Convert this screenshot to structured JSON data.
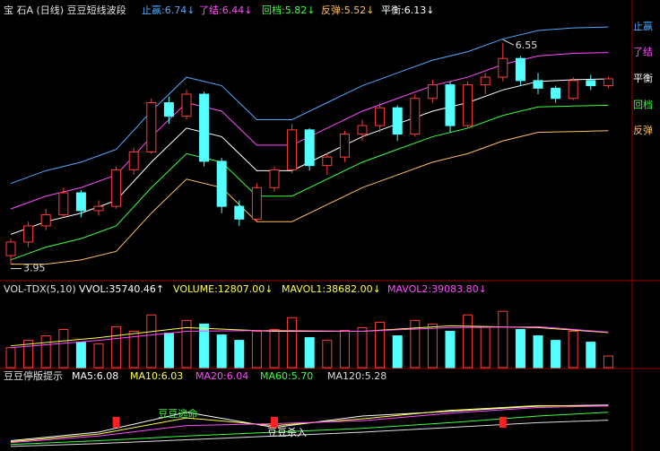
{
  "chart_data": [
    {
      "type": "candlestick",
      "title": "宝 石A (日线) 豆豆短线波段",
      "ylim": [
        3.84,
        6.9
      ],
      "open": [
        4.05,
        4.21,
        4.4,
        4.53,
        4.79,
        4.58,
        4.63,
        5.06,
        5.27,
        5.85,
        5.69,
        5.95,
        5.16,
        4.63,
        4.48,
        4.85,
        5.06,
        5.53,
        5.11,
        5.21,
        5.48,
        5.58,
        5.79,
        5.48,
        5.9,
        6.06,
        5.58,
        6.06,
        6.15,
        6.37,
        6.11,
        6.02,
        5.9,
        6.11,
        6.05
      ],
      "high": [
        4.25,
        4.45,
        4.6,
        4.85,
        4.82,
        4.7,
        5.1,
        5.32,
        5.9,
        5.92,
        6.0,
        5.98,
        5.2,
        4.7,
        4.9,
        5.1,
        5.6,
        5.55,
        5.25,
        5.52,
        5.65,
        5.85,
        5.82,
        5.95,
        6.12,
        6.1,
        6.1,
        6.2,
        6.55,
        6.4,
        6.2,
        6.05,
        6.15,
        6.18,
        6.16
      ],
      "low": [
        3.95,
        4.15,
        4.35,
        4.5,
        4.5,
        4.52,
        4.6,
        5.0,
        5.25,
        5.6,
        5.65,
        5.1,
        4.55,
        4.4,
        4.45,
        4.8,
        5.02,
        5.05,
        5.0,
        5.15,
        5.4,
        5.5,
        5.4,
        5.45,
        5.85,
        5.5,
        5.55,
        5.95,
        6.1,
        6.05,
        5.95,
        5.85,
        5.88,
        6.0,
        6.02
      ],
      "close": [
        4.21,
        4.4,
        4.53,
        4.79,
        4.58,
        4.63,
        5.06,
        5.27,
        5.85,
        5.69,
        5.95,
        5.16,
        4.63,
        4.48,
        4.85,
        5.06,
        5.53,
        5.11,
        5.21,
        5.48,
        5.58,
        5.79,
        5.48,
        5.9,
        6.06,
        5.58,
        6.06,
        6.15,
        6.37,
        6.11,
        6.02,
        5.9,
        6.11,
        6.05,
        6.13
      ],
      "band_x": [
        0,
        2,
        4,
        6,
        8,
        10,
        12,
        14,
        16,
        18,
        20,
        22,
        24,
        26,
        28,
        30,
        32,
        34
      ],
      "series": [
        {
          "name": "止赢",
          "label": "止赢:6.74↓",
          "color": "#4fa8ff",
          "values": [
            4.9,
            5.05,
            5.15,
            5.3,
            5.75,
            6.15,
            6.05,
            5.65,
            5.65,
            5.85,
            6.05,
            6.2,
            6.35,
            6.45,
            6.6,
            6.7,
            6.73,
            6.74
          ]
        },
        {
          "name": "了结",
          "label": "了结:6.44↓",
          "color": "#ff4cff",
          "values": [
            4.6,
            4.75,
            4.85,
            5.0,
            5.45,
            5.85,
            5.75,
            5.35,
            5.35,
            5.55,
            5.75,
            5.9,
            6.05,
            6.15,
            6.3,
            6.4,
            6.43,
            6.44
          ]
        },
        {
          "name": "回档",
          "label": "回档:5.82↓",
          "color": "#3cff3c",
          "values": [
            4.0,
            4.15,
            4.25,
            4.4,
            4.85,
            5.25,
            5.15,
            4.75,
            4.75,
            4.95,
            5.15,
            5.3,
            5.45,
            5.55,
            5.7,
            5.8,
            5.81,
            5.82
          ]
        },
        {
          "name": "反弹",
          "label": "反弹:5.52↓",
          "color": "#ffc060",
          "values": [
            3.95,
            3.95,
            4.0,
            4.1,
            4.55,
            4.95,
            4.85,
            4.45,
            4.45,
            4.65,
            4.85,
            5.0,
            5.15,
            5.25,
            5.4,
            5.5,
            5.51,
            5.52
          ]
        },
        {
          "name": "平衡",
          "label": "平衡:6.13↓",
          "color": "#ffffff",
          "values": [
            4.3,
            4.45,
            4.55,
            4.7,
            5.15,
            5.55,
            5.45,
            5.05,
            5.05,
            5.25,
            5.45,
            5.6,
            5.75,
            5.85,
            6.0,
            6.1,
            6.12,
            6.13
          ]
        }
      ],
      "annotations": [
        {
          "text": "6.55",
          "index": 28,
          "value": 6.55
        },
        {
          "text": "3.95",
          "index": 0,
          "value": 3.95
        }
      ]
    },
    {
      "type": "volume",
      "title": "VOL-TDX(5,10)",
      "ylim": [
        0,
        77000
      ],
      "header": [
        {
          "label": "VVOL:35740.46↑",
          "color": "#ffffff"
        },
        {
          "label": "VOLUME:12807.00↓",
          "color": "#ffff40"
        }
      ],
      "values": [
        22000,
        30000,
        35000,
        42000,
        28000,
        26000,
        45000,
        40000,
        58000,
        38000,
        52000,
        48000,
        36000,
        30000,
        40000,
        42000,
        55000,
        33000,
        30000,
        41000,
        44000,
        50000,
        35000,
        52000,
        48000,
        40000,
        58000,
        45000,
        62000,
        42000,
        35000,
        30000,
        40000,
        28000,
        12807
      ],
      "line_x": [
        0,
        5,
        10,
        15,
        20,
        25,
        30,
        34
      ],
      "series": [
        {
          "label": "MAVOL1:38682.00↓",
          "color": "#ffff40",
          "values": [
            24000,
            33000,
            44000,
            40000,
            40000,
            46000,
            44000,
            38682
          ]
        },
        {
          "label": "MAVOL2:39083.80↓",
          "color": "#ff4cff",
          "values": [
            22000,
            30000,
            40000,
            41000,
            40000,
            44000,
            45000,
            39083.8
          ]
        }
      ]
    },
    {
      "type": "line",
      "title": "豆豆停版提示",
      "ylim": [
        3.8,
        7.2
      ],
      "x": [
        0,
        5,
        10,
        15,
        20,
        25,
        30,
        34
      ],
      "series": [
        {
          "label": "MA5:6.08",
          "color": "#ffffff",
          "values": [
            4.2,
            4.65,
            5.7,
            4.9,
            5.5,
            5.75,
            6.02,
            6.08
          ]
        },
        {
          "label": "MA10:6.03",
          "color": "#ffff40",
          "values": [
            4.15,
            4.55,
            5.4,
            5.0,
            5.35,
            5.8,
            6.05,
            6.03
          ]
        },
        {
          "label": "MA20:6.04",
          "color": "#ff4cff",
          "values": [
            4.1,
            4.45,
            5.0,
            5.1,
            5.25,
            5.65,
            5.95,
            6.04
          ]
        },
        {
          "label": "MA60:5.70",
          "color": "#3cff3c",
          "values": [
            4.0,
            4.2,
            4.45,
            4.65,
            4.85,
            5.15,
            5.5,
            5.7
          ]
        },
        {
          "label": "MA120:5.28",
          "color": "#dddddd",
          "values": [
            3.9,
            4.05,
            4.25,
            4.45,
            4.65,
            4.9,
            5.15,
            5.28
          ]
        }
      ],
      "signals": [
        6,
        15,
        28
      ],
      "annotations": [
        {
          "text": "豆豆逃命",
          "index": 9
        },
        {
          "text": "豆豆杀入",
          "index": 15
        }
      ]
    }
  ]
}
